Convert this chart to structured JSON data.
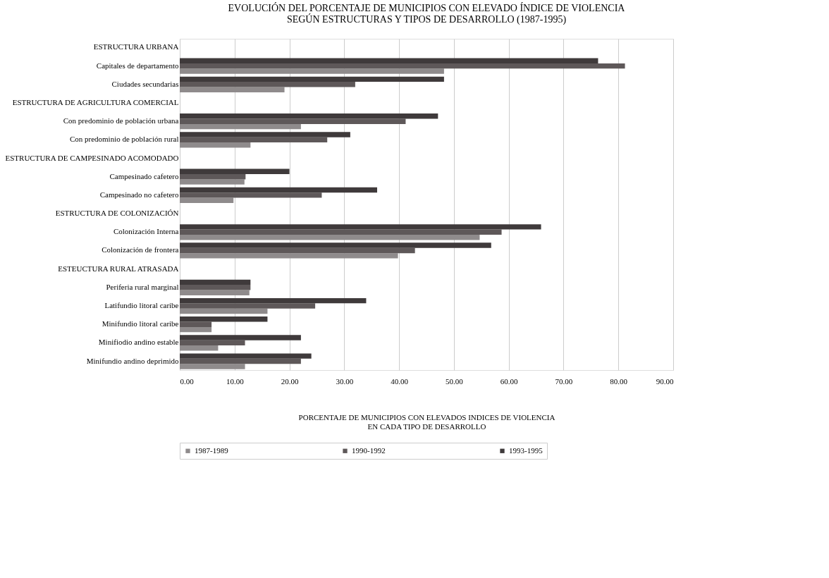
{
  "chart_data": {
    "type": "bar",
    "orientation": "horizontal",
    "title": [
      "EVOLUCIÓN DEL PORCENTAJE DE MUNICIPIOS CON ELEVADO ÍNDICE DE VIOLENCIA",
      "SEGÚN ESTRUCTURAS Y TIPOS DE DESARROLLO (1987-1995)"
    ],
    "xlabel": [
      "PORCENTAJE DE MUNICIPIOS CON ELEVADOS INDICES DE VIOLENCIA",
      "EN CADA TIPO DE DESARROLLO"
    ],
    "categories": [
      "ESTRUCTURA URBANA",
      "Capitales de departamento",
      "Ciudades secundarias",
      "ESTRUCTURA DE AGRICULTURA COMERCIAL",
      "Con predominio de población urbana",
      "Con predominio de población rural",
      "ESTRUCTURA DE CAMPESINADO ACOMODADO",
      "Campesinado cafetero",
      "Campesinado no cafetero",
      "ESTRUCTURA DE COLONIZACIÓN",
      "Colonización Interna",
      "Colonización de frontera",
      "ESTEUCTURA RURAL ATRASADA",
      "Periferia rural marginal",
      "Latifundio litoral caribe",
      "Minifundio litoral caribe",
      "Minifiodio andino estable",
      "Minifundio andino deprimido"
    ],
    "series": [
      {
        "name": "1987-1989",
        "color": "#8f8b8c",
        "values": [
          null,
          48.2,
          19.1,
          null,
          22.1,
          12.9,
          null,
          11.8,
          9.8,
          null,
          54.7,
          39.8,
          null,
          12.7,
          16.0,
          5.8,
          7.0,
          11.9
        ]
      },
      {
        "name": "1990-1992",
        "color": "#5e5859",
        "values": [
          null,
          81.2,
          32.0,
          null,
          41.2,
          26.9,
          null,
          12.0,
          25.9,
          null,
          58.7,
          42.9,
          null,
          12.9,
          24.7,
          5.8,
          11.9,
          22.1
        ]
      },
      {
        "name": "1993-1995",
        "color": "#3f3a3b",
        "values": [
          null,
          76.3,
          48.2,
          null,
          47.1,
          31.1,
          null,
          20.0,
          36.0,
          null,
          65.9,
          56.8,
          null,
          12.9,
          34.0,
          16.0,
          22.1,
          24.0
        ]
      }
    ],
    "xlim": [
      0,
      90
    ],
    "xticks": [
      {
        "value": 0,
        "label": "0.00"
      },
      {
        "value": 10,
        "label": "10.00"
      },
      {
        "value": 20,
        "label": "20.00"
      },
      {
        "value": 30,
        "label": "30.00"
      },
      {
        "value": 40,
        "label": "40.00"
      },
      {
        "value": 50,
        "label": "50.00"
      },
      {
        "value": 60,
        "label": "60.00"
      },
      {
        "value": 70,
        "label": "70.00"
      },
      {
        "value": 80,
        "label": "80.00"
      },
      {
        "value": 90,
        "label": "90.00"
      }
    ],
    "grid": "x",
    "legend": "bottom"
  }
}
